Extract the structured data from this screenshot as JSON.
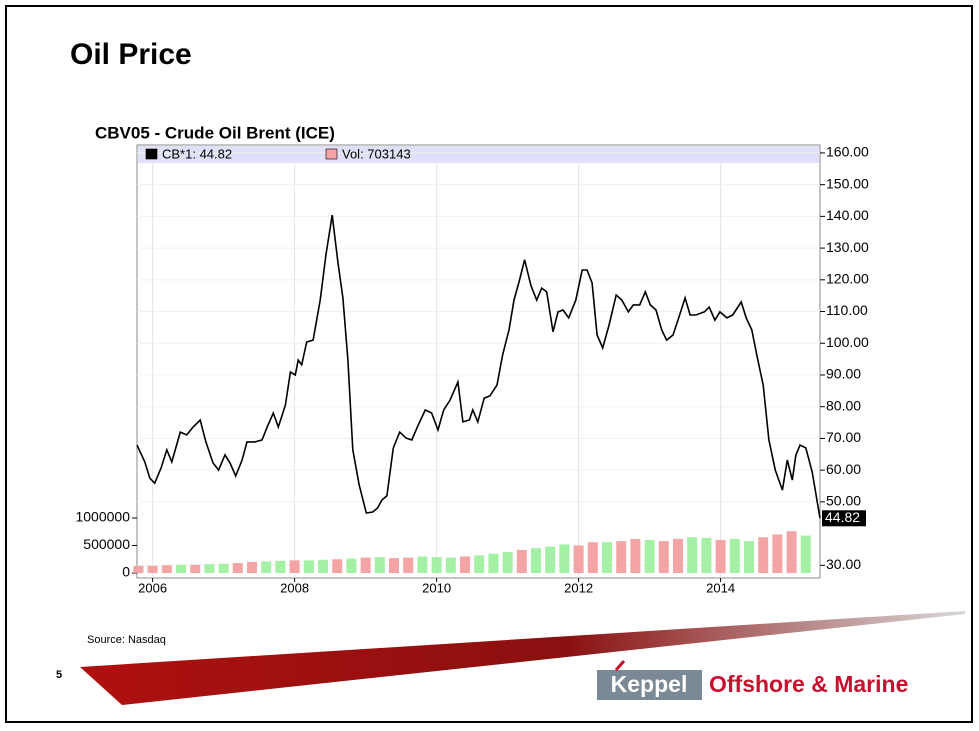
{
  "slide": {
    "title": "Oil Price",
    "source": "Source: Nasdaq",
    "page_number": "5",
    "logo_brand": "Keppel",
    "logo_text": "Offshore & Marine"
  },
  "chart_data": {
    "type": "line",
    "title": "CBV05 - Crude Oil Brent (ICE)",
    "grid": true,
    "xlim": [
      2005.78,
      2015.4
    ],
    "xticks": [
      2006,
      2008,
      2010,
      2012,
      2014
    ],
    "ylim": [
      26,
      162.5
    ],
    "yticks": [
      {
        "value": 30,
        "label": "30.00"
      },
      {
        "value": 50,
        "label": "50.00"
      },
      {
        "value": 60,
        "label": "60.00"
      },
      {
        "value": 70,
        "label": "70.00"
      },
      {
        "value": 80,
        "label": "80.00"
      },
      {
        "value": 90,
        "label": "90.00"
      },
      {
        "value": 100,
        "label": "100.00"
      },
      {
        "value": 110,
        "label": "110.00"
      },
      {
        "value": 120,
        "label": "120.00"
      },
      {
        "value": 130,
        "label": "130.00"
      },
      {
        "value": 140,
        "label": "140.00"
      },
      {
        "value": 150,
        "label": "150.00"
      },
      {
        "value": 160,
        "label": "160.00"
      }
    ],
    "y2lim": [
      -90900,
      7781800
    ],
    "y2ticks": [
      0,
      500000,
      1000000
    ],
    "series": [
      {
        "name": "CB*1: 44.82",
        "color": "#000000",
        "x": [
          2005.78,
          2005.89,
          2005.96,
          2006.03,
          2006.12,
          2006.2,
          2006.27,
          2006.39,
          2006.48,
          2006.57,
          2006.67,
          2006.75,
          2006.85,
          2006.93,
          2007.02,
          2007.09,
          2007.17,
          2007.26,
          2007.33,
          2007.44,
          2007.54,
          2007.62,
          2007.7,
          2007.77,
          2007.87,
          2007.94,
          2008.01,
          2008.05,
          2008.1,
          2008.17,
          2008.26,
          2008.36,
          2008.44,
          2008.53,
          2008.61,
          2008.68,
          2008.75,
          2008.82,
          2008.91,
          2009.01,
          2009.1,
          2009.17,
          2009.23,
          2009.3,
          2009.39,
          2009.48,
          2009.57,
          2009.65,
          2009.74,
          2009.84,
          2009.93,
          2010.02,
          2010.1,
          2010.19,
          2010.3,
          2010.37,
          2010.46,
          2010.51,
          2010.58,
          2010.67,
          2010.75,
          2010.85,
          2010.93,
          2011.02,
          2011.09,
          2011.16,
          2011.24,
          2011.33,
          2011.41,
          2011.48,
          2011.55,
          2011.64,
          2011.71,
          2011.78,
          2011.86,
          2011.96,
          2012.05,
          2012.12,
          2012.19,
          2012.26,
          2012.34,
          2012.43,
          2012.53,
          2012.61,
          2012.7,
          2012.77,
          2012.86,
          2012.94,
          2013.01,
          2013.09,
          2013.17,
          2013.24,
          2013.33,
          2013.41,
          2013.5,
          2013.57,
          2013.65,
          2013.77,
          2013.84,
          2013.92,
          2013.99,
          2014.09,
          2014.17,
          2014.29,
          2014.36,
          2014.44,
          2014.51,
          2014.6,
          2014.68,
          2014.77,
          2014.87,
          2014.94,
          2015.01,
          2015.06,
          2015.12,
          2015.2,
          2015.29,
          2015.4
        ],
        "values": [
          67.9,
          62.6,
          57.5,
          55.9,
          60.7,
          66.4,
          62.6,
          72.0,
          71.1,
          73.6,
          75.8,
          68.9,
          62.3,
          60.0,
          64.8,
          62.3,
          58.2,
          63.2,
          68.9,
          68.9,
          69.5,
          73.9,
          78.0,
          73.6,
          80.5,
          90.9,
          90.0,
          94.7,
          93.2,
          100.4,
          101.0,
          113.6,
          127.8,
          140.4,
          125.6,
          114.3,
          94.7,
          66.4,
          55.3,
          46.5,
          46.8,
          48.1,
          50.6,
          51.9,
          67.0,
          72.0,
          70.1,
          69.5,
          74.2,
          79.0,
          78.0,
          72.7,
          79.0,
          82.1,
          87.8,
          75.2,
          75.8,
          79.0,
          75.2,
          82.7,
          83.4,
          86.8,
          96.3,
          104.2,
          113.6,
          119.3,
          126.3,
          118.1,
          113.6,
          117.4,
          116.2,
          103.6,
          109.9,
          110.5,
          108.0,
          113.6,
          123.1,
          123.1,
          119.0,
          102.6,
          98.5,
          105.8,
          115.2,
          113.6,
          109.9,
          112.1,
          112.1,
          116.2,
          112.1,
          110.5,
          104.2,
          101.0,
          102.6,
          108.0,
          114.3,
          108.9,
          108.9,
          109.9,
          111.4,
          107.3,
          109.9,
          108.0,
          108.9,
          113.0,
          108.0,
          104.2,
          96.3,
          86.8,
          69.5,
          60.0,
          53.7,
          63.2,
          56.9,
          64.8,
          67.9,
          67.0,
          59.4,
          44.82
        ]
      },
      {
        "name": "Vol: 703143",
        "color": "#f4a4a4",
        "type": "bar",
        "axis": "y2",
        "x": [
          2005.8,
          2006.0,
          2006.2,
          2006.4,
          2006.6,
          2006.8,
          2007.0,
          2007.2,
          2007.4,
          2007.6,
          2007.8,
          2008.0,
          2008.2,
          2008.4,
          2008.6,
          2008.8,
          2009.0,
          2009.2,
          2009.4,
          2009.6,
          2009.8,
          2010.0,
          2010.2,
          2010.4,
          2010.6,
          2010.8,
          2011.0,
          2011.2,
          2011.4,
          2011.6,
          2011.8,
          2012.0,
          2012.2,
          2012.4,
          2012.6,
          2012.8,
          2013.0,
          2013.2,
          2013.4,
          2013.6,
          2013.8,
          2014.0,
          2014.2,
          2014.4,
          2014.6,
          2014.8,
          2015.0,
          2015.2
        ],
        "values": [
          130000,
          130000,
          140000,
          150000,
          150000,
          160000,
          170000,
          180000,
          200000,
          210000,
          220000,
          230000,
          230000,
          240000,
          250000,
          260000,
          280000,
          290000,
          270000,
          280000,
          300000,
          290000,
          280000,
          300000,
          320000,
          350000,
          380000,
          420000,
          450000,
          480000,
          520000,
          500000,
          560000,
          560000,
          580000,
          620000,
          600000,
          580000,
          620000,
          650000,
          640000,
          600000,
          620000,
          580000,
          650000,
          700000,
          760000,
          680000
        ],
        "colors": [
          "#f4a4a4",
          "#f4a4a4",
          "#f4a4a4",
          "#a4f0a4",
          "#f4a4a4",
          "#a4f0a4",
          "#a4f0a4",
          "#f4a4a4",
          "#f4a4a4",
          "#a4f0a4",
          "#a4f0a4",
          "#f4a4a4",
          "#a4f0a4",
          "#a4f0a4",
          "#f4a4a4",
          "#a4f0a4",
          "#f4a4a4",
          "#a4f0a4",
          "#f4a4a4",
          "#f4a4a4",
          "#a4f0a4",
          "#a4f0a4",
          "#a4f0a4",
          "#f4a4a4",
          "#a4f0a4",
          "#a4f0a4",
          "#a4f0a4",
          "#f4a4a4",
          "#a4f0a4",
          "#a4f0a4",
          "#a4f0a4",
          "#f4a4a4",
          "#f4a4a4",
          "#a4f0a4",
          "#f4a4a4",
          "#f4a4a4",
          "#a4f0a4",
          "#f4a4a4",
          "#f4a4a4",
          "#a4f0a4",
          "#a4f0a4",
          "#f4a4a4",
          "#a4f0a4",
          "#a4f0a4",
          "#f4a4a4",
          "#f4a4a4",
          "#f4a4a4",
          "#a4f0a4"
        ]
      }
    ]
  }
}
